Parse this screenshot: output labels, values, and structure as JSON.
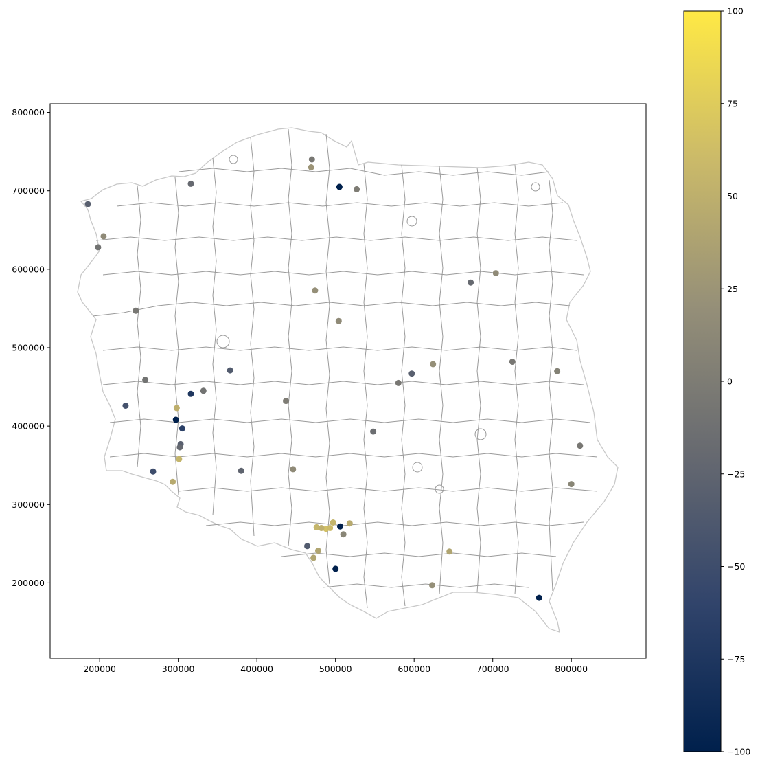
{
  "chart_data": {
    "type": "scatter",
    "title": "",
    "xlabel": "",
    "ylabel": "",
    "xlim": [
      137000,
      895000
    ],
    "ylim": [
      104000,
      811000
    ],
    "x_ticks": [
      200000,
      300000,
      400000,
      500000,
      600000,
      700000,
      800000
    ],
    "y_ticks": [
      200000,
      300000,
      400000,
      500000,
      600000,
      700000,
      800000
    ],
    "x_tick_labels": [
      "200000",
      "300000",
      "400000",
      "500000",
      "600000",
      "700000",
      "800000"
    ],
    "y_tick_labels": [
      "200000",
      "300000",
      "400000",
      "500000",
      "600000",
      "700000",
      "800000"
    ],
    "grid": false,
    "basemap": "Poland county boundaries (light grey outlines)",
    "colorbar": {
      "colormap": "cividis",
      "range": [
        -100,
        100
      ],
      "ticks": [
        100,
        75,
        50,
        25,
        0,
        -25,
        -50,
        -75,
        -100
      ],
      "tick_labels": [
        "100",
        "75",
        "50",
        "25",
        "0",
        "−25",
        "−50",
        "−75",
        "−100"
      ],
      "colors": [
        "#00204c",
        "#31446b",
        "#666970",
        "#958f78",
        "#cbba69",
        "#ffe945"
      ]
    },
    "points": [
      {
        "x": 185000,
        "y": 683000,
        "v": -30
      },
      {
        "x": 198000,
        "y": 628000,
        "v": -10
      },
      {
        "x": 205000,
        "y": 642000,
        "v": 15
      },
      {
        "x": 316000,
        "y": 709000,
        "v": -20
      },
      {
        "x": 470000,
        "y": 740000,
        "v": -5
      },
      {
        "x": 469000,
        "y": 730000,
        "v": 25
      },
      {
        "x": 505000,
        "y": 705000,
        "v": -100
      },
      {
        "x": 527000,
        "y": 702000,
        "v": 0
      },
      {
        "x": 672000,
        "y": 583000,
        "v": -20
      },
      {
        "x": 704000,
        "y": 595000,
        "v": 15
      },
      {
        "x": 474000,
        "y": 573000,
        "v": 20
      },
      {
        "x": 504000,
        "y": 534000,
        "v": 15
      },
      {
        "x": 246000,
        "y": 547000,
        "v": -5
      },
      {
        "x": 725000,
        "y": 482000,
        "v": -5
      },
      {
        "x": 782000,
        "y": 470000,
        "v": 5
      },
      {
        "x": 624000,
        "y": 479000,
        "v": 20
      },
      {
        "x": 597000,
        "y": 467000,
        "v": -30
      },
      {
        "x": 580000,
        "y": 455000,
        "v": -5
      },
      {
        "x": 366000,
        "y": 471000,
        "v": -35
      },
      {
        "x": 332000,
        "y": 445000,
        "v": -10
      },
      {
        "x": 316000,
        "y": 441000,
        "v": -75
      },
      {
        "x": 258000,
        "y": 459000,
        "v": -10
      },
      {
        "x": 233000,
        "y": 426000,
        "v": -45
      },
      {
        "x": 437000,
        "y": 432000,
        "v": 0
      },
      {
        "x": 298000,
        "y": 423000,
        "v": 50
      },
      {
        "x": 297000,
        "y": 408000,
        "v": -100
      },
      {
        "x": 305000,
        "y": 397000,
        "v": -65
      },
      {
        "x": 548000,
        "y": 393000,
        "v": -15
      },
      {
        "x": 811000,
        "y": 375000,
        "v": -5
      },
      {
        "x": 303000,
        "y": 377000,
        "v": -30
      },
      {
        "x": 302000,
        "y": 373000,
        "v": -20
      },
      {
        "x": 301000,
        "y": 358000,
        "v": 55
      },
      {
        "x": 446000,
        "y": 345000,
        "v": 15
      },
      {
        "x": 380000,
        "y": 343000,
        "v": -25
      },
      {
        "x": 268000,
        "y": 342000,
        "v": -50
      },
      {
        "x": 293000,
        "y": 329000,
        "v": 45
      },
      {
        "x": 800000,
        "y": 326000,
        "v": 10
      },
      {
        "x": 476000,
        "y": 271000,
        "v": 55
      },
      {
        "x": 488000,
        "y": 269000,
        "v": 65
      },
      {
        "x": 493000,
        "y": 270000,
        "v": 60
      },
      {
        "x": 497000,
        "y": 277000,
        "v": 55
      },
      {
        "x": 482000,
        "y": 270000,
        "v": 50
      },
      {
        "x": 506000,
        "y": 272000,
        "v": -100
      },
      {
        "x": 518000,
        "y": 276000,
        "v": 45
      },
      {
        "x": 510000,
        "y": 262000,
        "v": 10
      },
      {
        "x": 464000,
        "y": 247000,
        "v": -35
      },
      {
        "x": 478000,
        "y": 241000,
        "v": 40
      },
      {
        "x": 472000,
        "y": 232000,
        "v": 40
      },
      {
        "x": 645000,
        "y": 240000,
        "v": 40
      },
      {
        "x": 500000,
        "y": 218000,
        "v": -100
      },
      {
        "x": 623000,
        "y": 197000,
        "v": 20
      },
      {
        "x": 759000,
        "y": 181000,
        "v": -100
      }
    ]
  }
}
